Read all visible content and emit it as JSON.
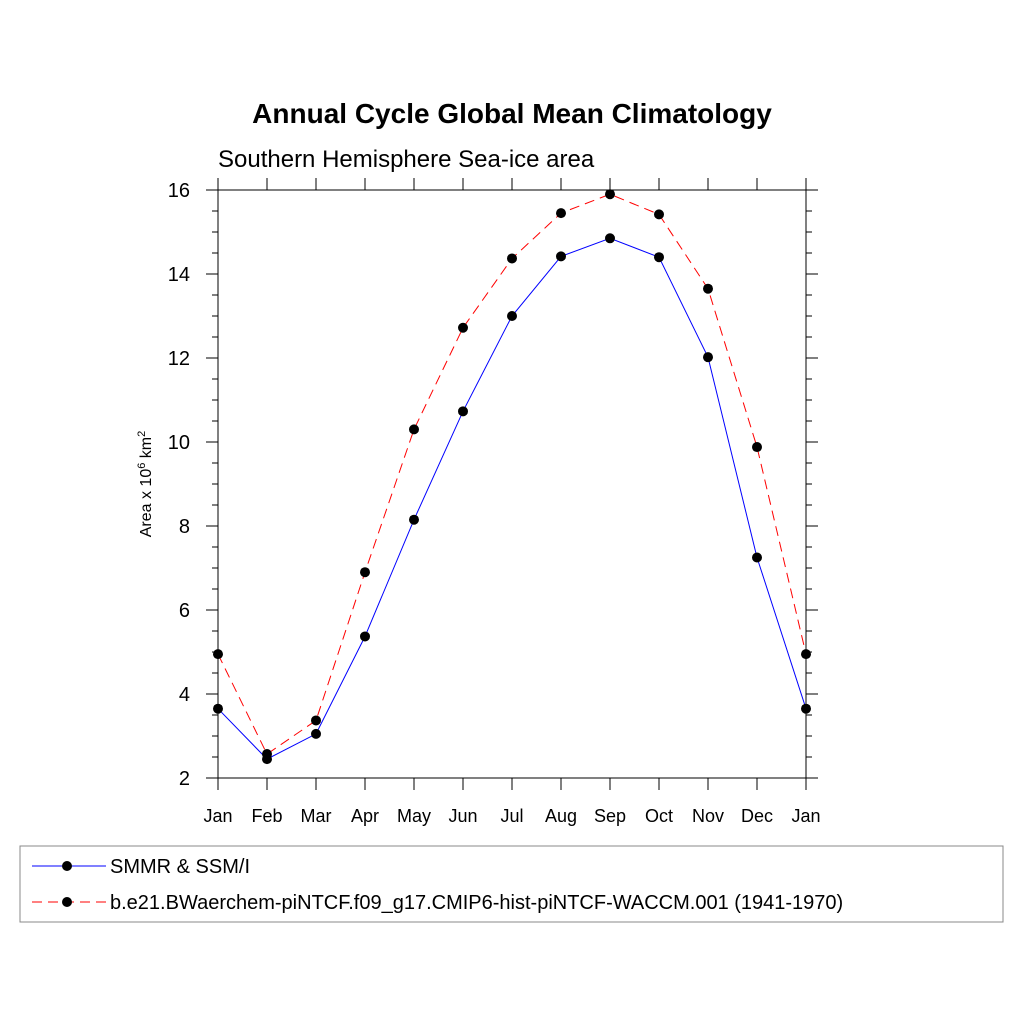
{
  "chart_data": {
    "type": "line",
    "title": "Annual Cycle Global Mean Climatology",
    "subtitle": "Southern Hemisphere Sea-ice area",
    "ylabel": {
      "prefix": "Area x 10",
      "exp1": "6",
      "mid": " km",
      "exp2": "2"
    },
    "xlabel": "",
    "ylim": [
      2,
      16
    ],
    "yticks": [
      2,
      4,
      6,
      8,
      10,
      12,
      14,
      16
    ],
    "categories": [
      "Jan",
      "Feb",
      "Mar",
      "Apr",
      "May",
      "Jun",
      "Jul",
      "Aug",
      "Sep",
      "Oct",
      "Nov",
      "Dec",
      "Jan"
    ],
    "series": [
      {
        "name": "SMMR & SSM/I",
        "color": "#0000ff",
        "style": "solid",
        "values": [
          3.65,
          2.45,
          3.05,
          5.37,
          8.15,
          10.73,
          13.0,
          14.42,
          14.85,
          14.4,
          12.02,
          7.25,
          3.65
        ]
      },
      {
        "name": "b.e21.BWaerchem-piNTCF.f09_g17.CMIP6-hist-piNTCF-WACCM.001 (1941-1970)",
        "color": "#ff0000",
        "style": "dashed",
        "values": [
          4.95,
          2.57,
          3.37,
          6.9,
          10.3,
          12.72,
          14.37,
          15.45,
          15.9,
          15.42,
          13.65,
          9.88,
          4.95
        ]
      }
    ],
    "marker_color": "#000000",
    "legend_position": "bottom"
  }
}
